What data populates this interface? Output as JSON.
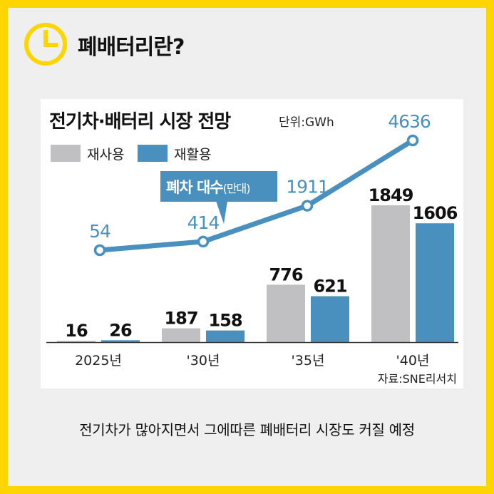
{
  "header": {
    "title": "폐배터리란?",
    "icon": "clock-icon",
    "accent_color": "#ffd500"
  },
  "chart_data": {
    "type": "bar",
    "title": "전기차·배터리 시장 전망",
    "unit_note": "단위:GWh",
    "source": "자료:SNE리서치",
    "categories": [
      "2025년",
      "'30년",
      "'35년",
      "'40년"
    ],
    "series": [
      {
        "name": "재사용",
        "color": "#c0c0c3",
        "values": [
          16,
          187,
          776,
          1849
        ]
      },
      {
        "name": "재활용",
        "color": "#4a90bf",
        "values": [
          26,
          158,
          621,
          1606
        ]
      }
    ],
    "line": {
      "name": "폐차 대수",
      "name_suffix": "(만대)",
      "color": "#4a90bf",
      "values": [
        54,
        414,
        1911,
        4636
      ]
    },
    "legend_position": "top-left",
    "grid": false
  },
  "caption": "전기차가 많아지면서 그에따른 폐배터리 시장도 커질 예정"
}
